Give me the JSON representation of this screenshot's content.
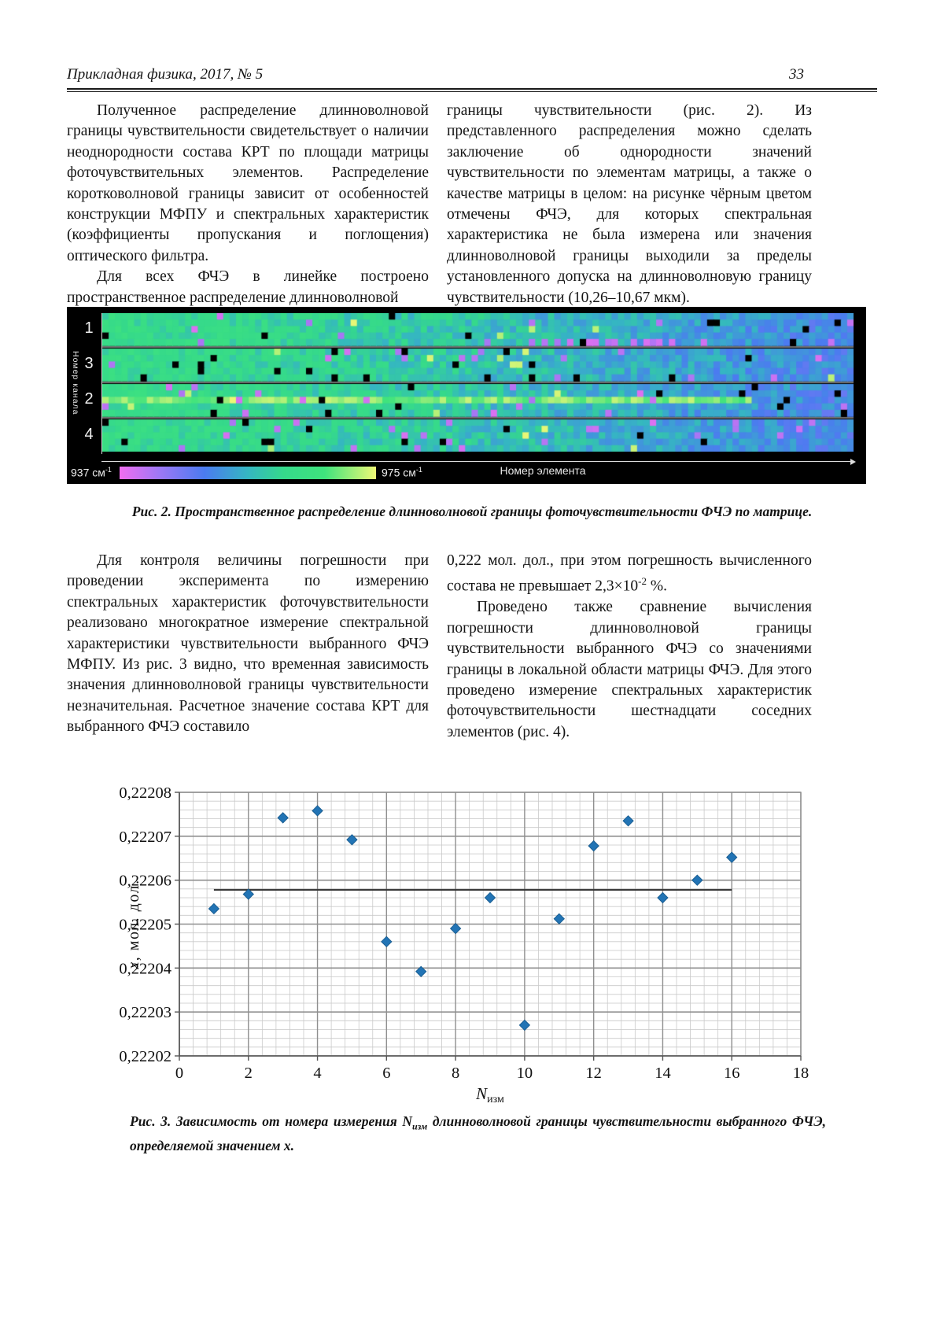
{
  "header": {
    "journal": "Прикладная физика, 2017, № 5",
    "page_number": "33"
  },
  "text": {
    "block1_left_p1": "Полученное распределение длинноволновой границы чувствительности свидетельствует о наличии неоднородности состава КРТ по площади матрицы фоточувствительных элементов. Распределение коротковолновой границы зависит от особенностей конструкции МФПУ и спектральных характеристик (коэффициенты пропускания и поглощения) оптического фильтра.",
    "block1_left_p2": "Для всех ФЧЭ в линейке построено пространственное распределение длинноволновой",
    "block1_right_p1": "границы чувствительности (рис. 2). Из представленного распределения можно сделать заключение об однородности значений чувствительности по элементам матрицы, а также о качестве матрицы в целом: на рисунке чёрным цветом отмечены ФЧЭ, для которых спектральная характеристика не была измерена или значения длинноволновой границы выходили за пределы установленного допуска на длинноволновую границу чувствительности (10,26–10,67 мкм).",
    "block2_left_p1": "Для контроля величины погрешности при проведении эксперимента по измерению спектральных характеристик фоточувствительности реализовано многократное измерение спектральной характеристики чувствительности выбранного ФЧЭ МФПУ. Из рис. 3 видно, что временная зависимость значения длинноволновой границы чувствительности незначительная. Расчетное значение состава КРТ для выбранного ФЧЭ составило",
    "block2_right_p1_pre": "0,222 мол. дол., при этом погрешность вычисленного состава не превышает 2,3×10",
    "block2_right_p1_sup": "-2",
    "block2_right_p1_post": " %.",
    "block2_right_p2": "Проведено также сравнение вычисления погрешности длинноволновой границы чувствительности выбранного ФЧЭ со значениями границы в локальной области матрицы ФЧЭ. Для этого проведено измерение спектральных характеристик фоточувствительности шестнадцати соседних элементов (рис. 4)."
  },
  "figure2": {
    "caption": "Рис. 2. Пространственное распределение длинноволновой границы фоточувствительности ФЧЭ по матрице.",
    "axis_left_label": "Номер канала",
    "axis_bottom_label": "Номер элемента",
    "channels": [
      "1",
      "3",
      "2",
      "4"
    ],
    "colorbar": {
      "min": "937 см",
      "min_exp": "-1",
      "max": "975 см",
      "max_exp": "-1"
    },
    "palette": [
      [
        0,
        "#f06ef0"
      ],
      [
        0.18,
        "#9b78f5"
      ],
      [
        0.34,
        "#4b7bf0"
      ],
      [
        0.5,
        "#35b6c2"
      ],
      [
        0.62,
        "#35d98b"
      ],
      [
        0.8,
        "#3fe37d"
      ],
      [
        1,
        "#eef876"
      ]
    ],
    "grid": {
      "bands": 4,
      "rows": 5,
      "cols": 118,
      "seed": 7
    }
  },
  "figure3": {
    "caption_pre": "Рис. 3. Зависимость от номера измерения ",
    "caption_nvar": "N",
    "caption_sub": "изм",
    "caption_post": " длинноволновой границы чувствительности выбранного ФЧЭ, определяемой значением ",
    "caption_xvar": "x."
  },
  "chart_data": {
    "type": "scatter",
    "title": "",
    "xlabel_main": "N",
    "xlabel_sub": "изм",
    "ylabel_var": "x",
    "ylabel_rest": ", мол. дол.",
    "x": [
      1,
      2,
      3,
      4,
      5,
      6,
      7,
      8,
      9,
      10,
      11,
      12,
      13,
      14,
      15,
      16
    ],
    "y": [
      0.2220535,
      0.2220568,
      0.2220742,
      0.2220758,
      0.2220692,
      0.222046,
      0.2220392,
      0.222049,
      0.222056,
      0.222027,
      0.2220512,
      0.2220678,
      0.2220735,
      0.222056,
      0.22206,
      0.2220652
    ],
    "mean_line": {
      "y": 0.2220578,
      "x_start": 1,
      "x_end": 16
    },
    "xlim": [
      0,
      18
    ],
    "ylim": [
      0.22202,
      0.22208
    ],
    "x_ticks": [
      0,
      2,
      4,
      6,
      8,
      10,
      12,
      14,
      16,
      18
    ],
    "x_tick_labels": [
      "0",
      "2",
      "4",
      "6",
      "8",
      "10",
      "12",
      "14",
      "16",
      "18"
    ],
    "y_tick_step": 1e-05,
    "y_tick_labels": [
      "0,22202",
      "0,22203",
      "0,22204",
      "0,22205",
      "0,22206",
      "0,22207",
      "0,22208"
    ],
    "minor_x_step": 0.4,
    "minor_y_step": 2e-06,
    "grid_minor_color": "#c9c9c9",
    "grid_major_color": "#8f8f8f",
    "axis_color": "#555555",
    "mean_line_color": "#3a3a3a",
    "marker_color": "#2274B5",
    "marker_stroke": "#1A5E92",
    "legend": "none",
    "grid": "on"
  }
}
